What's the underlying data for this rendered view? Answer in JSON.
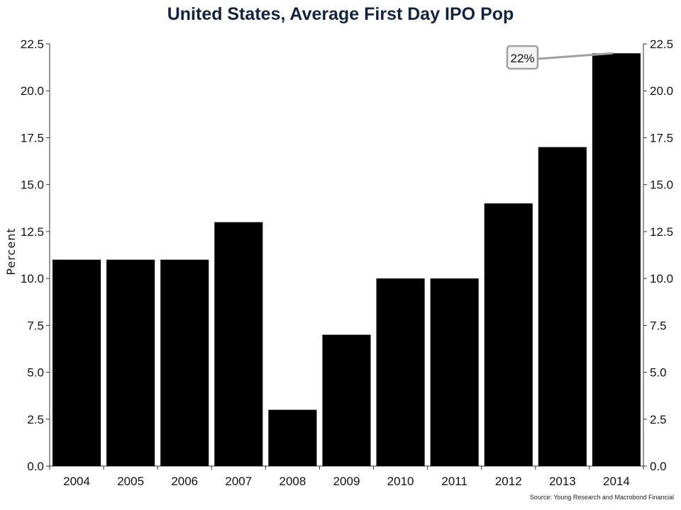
{
  "chart_data": {
    "type": "bar",
    "title": "United States, Average First Day IPO Pop",
    "ylabel": "Percent",
    "xlabel": "",
    "categories": [
      "2004",
      "2005",
      "2006",
      "2007",
      "2008",
      "2009",
      "2010",
      "2011",
      "2012",
      "2013",
      "2014"
    ],
    "values": [
      11,
      11,
      11,
      13,
      3,
      7,
      10,
      10,
      14,
      17,
      22
    ],
    "ylim": [
      0,
      22.5
    ],
    "yticks": [
      "0.0",
      "2.5",
      "5.0",
      "7.5",
      "10.0",
      "12.5",
      "15.0",
      "17.5",
      "20.0",
      "22.5"
    ],
    "bar_color": "#000000",
    "grid": false,
    "secondary_y_axis": true,
    "annotation": {
      "text": "22%",
      "category": "2014",
      "value": 22
    }
  },
  "source": "Source: Young Research and Macrobond Financial"
}
